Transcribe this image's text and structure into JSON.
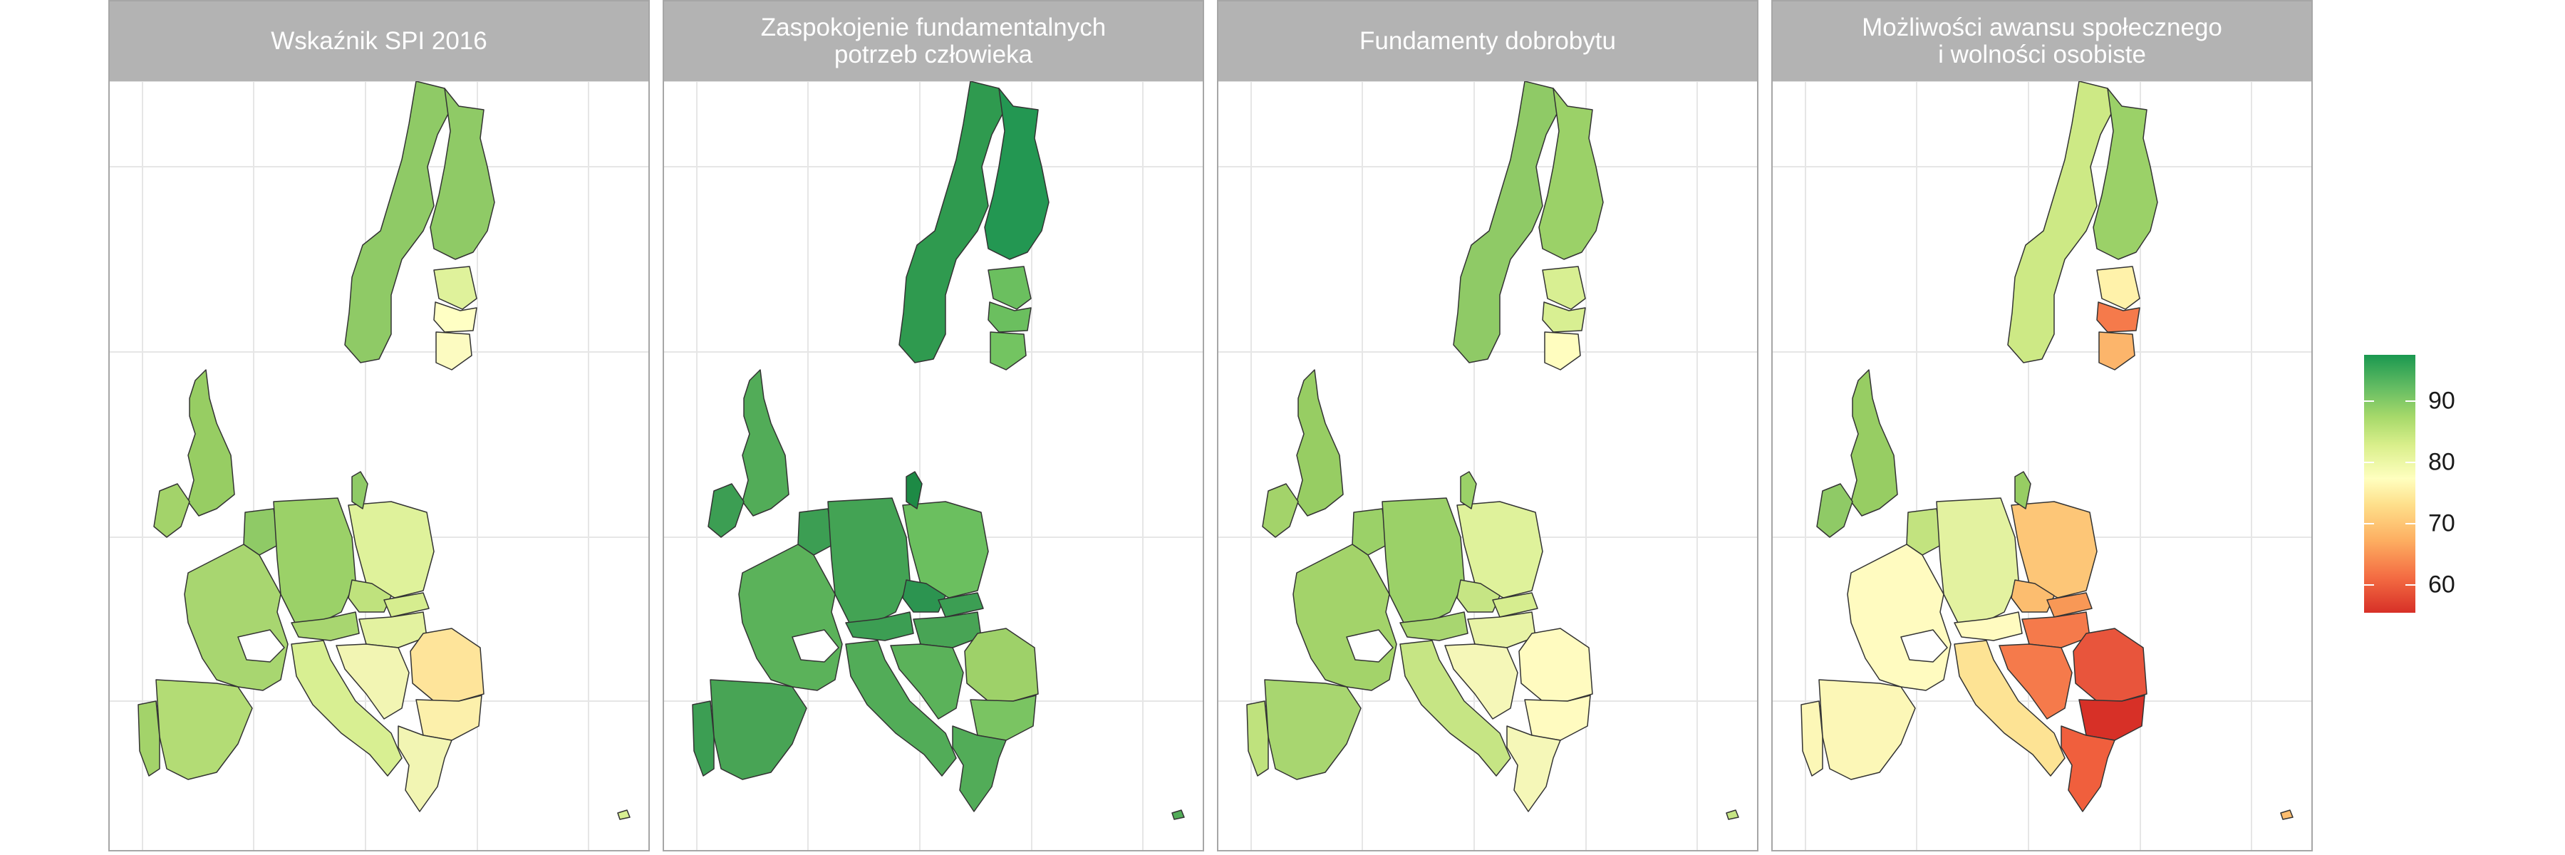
{
  "panels": [
    {
      "title": "Wskaźnik SPI 2016",
      "colors": {
        "nordic": "#8fca66",
        "finland": "#8fca66",
        "baltic_n": "#dff29b",
        "baltic_m": "#ffffc4",
        "baltic_s": "#fcfbc1",
        "uk": "#97cd63",
        "ireland": "#a3d36a",
        "benelux": "#8fca66",
        "germany": "#9bd168",
        "france": "#a8d670",
        "iberia": "#b3dc75",
        "portugal": "#a3d36a",
        "poland": "#dff29b",
        "czech": "#bfe27d",
        "austria": "#a8d670",
        "swiss": "#ffffff",
        "italy": "#d8ef92",
        "slovakia": "#d6ed8f",
        "hungary": "#e3f2a0",
        "balkans": "#f2f5b3",
        "romania": "#fee49a",
        "bulgaria": "#fcf0ab",
        "greece": "#f2f5b3",
        "malta": "#d8ef92",
        "denmark": "#8fca66"
      }
    },
    {
      "title": "Zaspokojenie fundamentalnych\npotrzeb człowieka",
      "colors": {
        "nordic": "#2f9a4f",
        "finland": "#239752",
        "baltic_n": "#6bbf5f",
        "baltic_m": "#6bbf5f",
        "baltic_s": "#73c461",
        "uk": "#52ac58",
        "ireland": "#3c9e53",
        "benelux": "#3c9e53",
        "germany": "#43a354",
        "france": "#5bb25a",
        "iberia": "#48a455",
        "portugal": "#3c9e53",
        "poland": "#6bbf5f",
        "czech": "#2c9450",
        "austria": "#3c9e53",
        "swiss": "#ffffff",
        "italy": "#52ac58",
        "slovakia": "#3c9e53",
        "hungary": "#48a455",
        "balkans": "#5bb25a",
        "romania": "#9ed169",
        "bulgaria": "#7ac462",
        "greece": "#52ac58",
        "malta": "#52ac58",
        "denmark": "#1d8a45"
      }
    },
    {
      "title": "Fundamenty dobrobytu",
      "colors": {
        "nordic": "#8fca66",
        "finland": "#9bd168",
        "baltic_n": "#d8ef92",
        "baltic_m": "#d8ef92",
        "baltic_s": "#fffdbf",
        "uk": "#97cd63",
        "ireland": "#a3d36a",
        "benelux": "#9bd168",
        "germany": "#9bd168",
        "france": "#a3d36a",
        "iberia": "#a8d670",
        "portugal": "#bfe27d",
        "poland": "#dff29b",
        "czech": "#c6e584",
        "austria": "#a8d670",
        "swiss": "#ffffff",
        "italy": "#c6e584",
        "slovakia": "#d6ed8f",
        "hungary": "#e8f3a6",
        "balkans": "#f5f7b8",
        "romania": "#fffbc0",
        "bulgaria": "#fffbc0",
        "greece": "#f5f7b8",
        "malta": "#c6e584",
        "denmark": "#9bd168"
      }
    },
    {
      "title": "Możliwości awansu społecznego\ni wolności osobiste",
      "colors": {
        "nordic": "#cde985",
        "finland": "#9bd168",
        "baltic_n": "#fff2aa",
        "baltic_m": "#f57a4b",
        "baltic_s": "#fcb56b",
        "uk": "#97cd63",
        "ireland": "#8fca66",
        "benelux": "#c2e37f",
        "germany": "#e3f2a0",
        "france": "#fffbc0",
        "iberia": "#fcf7b7",
        "portugal": "#fcf7b7",
        "poland": "#fdc677",
        "czech": "#fcbd6f",
        "austria": "#fffbc0",
        "swiss": "#ffffff",
        "italy": "#fde394",
        "slovakia": "#f89856",
        "hungary": "#f57a4b",
        "balkans": "#f57a4b",
        "romania": "#e8553c",
        "bulgaria": "#d73027",
        "greece": "#f05f3d",
        "malta": "#fcbd6f",
        "denmark": "#97cd63"
      }
    }
  ],
  "legend": {
    "ticks": [
      {
        "value": 90,
        "label": "90"
      },
      {
        "value": 80,
        "label": "80"
      },
      {
        "value": 70,
        "label": "70"
      },
      {
        "value": 60,
        "label": "60"
      }
    ],
    "min": 55.5,
    "max": 97.5
  }
}
